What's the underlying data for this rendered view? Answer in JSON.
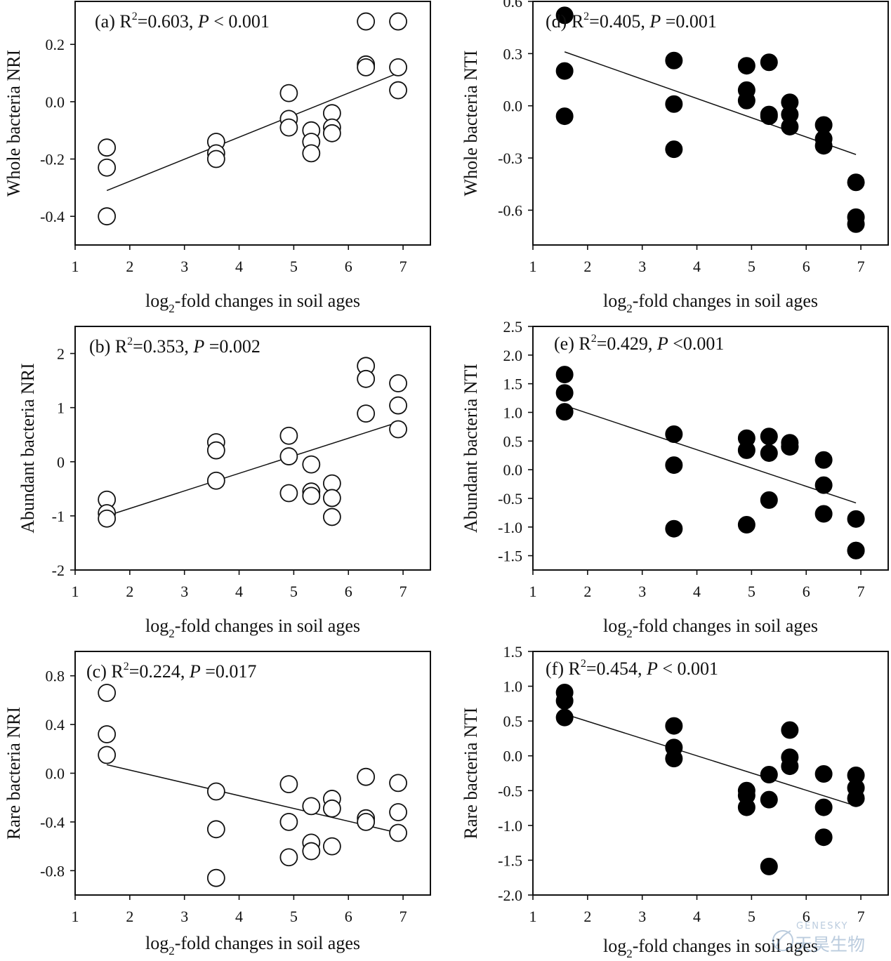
{
  "chart_data": [
    {
      "type": "scatter",
      "panel": "(a)",
      "stat_r2": "=0.603,",
      "stat_p": "< 0.001",
      "xlabel": "log₂-fold changes in soil ages",
      "ylabel": "Whole bacteria NRI",
      "xlim": [
        1,
        7.5
      ],
      "ylim": [
        -0.5,
        0.35
      ],
      "xticks": [
        1,
        2,
        3,
        4,
        5,
        6,
        7
      ],
      "yticks": [
        -0.4,
        -0.2,
        0.0,
        0.2
      ],
      "ytick_labels": [
        "-0.4",
        "-0.2",
        "0.0",
        "0.2"
      ],
      "marker": "open",
      "points": [
        [
          1.58,
          -0.16
        ],
        [
          1.58,
          -0.23
        ],
        [
          1.58,
          -0.4
        ],
        [
          3.58,
          -0.14
        ],
        [
          3.58,
          -0.18
        ],
        [
          3.58,
          -0.2
        ],
        [
          4.91,
          0.03
        ],
        [
          4.91,
          -0.06
        ],
        [
          4.91,
          -0.09
        ],
        [
          5.32,
          -0.1
        ],
        [
          5.32,
          -0.14
        ],
        [
          5.32,
          -0.18
        ],
        [
          5.7,
          -0.04
        ],
        [
          5.7,
          -0.09
        ],
        [
          5.7,
          -0.11
        ],
        [
          6.32,
          0.28
        ],
        [
          6.32,
          0.13
        ],
        [
          6.32,
          0.12
        ],
        [
          6.91,
          0.28
        ],
        [
          6.91,
          0.12
        ],
        [
          6.91,
          0.04
        ]
      ],
      "fit": [
        [
          1.58,
          -0.31
        ],
        [
          6.91,
          0.1
        ]
      ]
    },
    {
      "type": "scatter",
      "panel": "(b)",
      "stat_r2": "=0.353,",
      "stat_p": "=0.002",
      "xlabel": "log₂-fold changes in soil ages",
      "ylabel": "Abundant bacteria NRI",
      "xlim": [
        1,
        7.5
      ],
      "ylim": [
        -2,
        2.5
      ],
      "xticks": [
        1,
        2,
        3,
        4,
        5,
        6,
        7
      ],
      "yticks": [
        -2,
        -1,
        0,
        1,
        2
      ],
      "ytick_labels": [
        "-2",
        "-1",
        "0",
        "1",
        "2"
      ],
      "marker": "open",
      "points": [
        [
          1.58,
          -0.7
        ],
        [
          1.58,
          -0.95
        ],
        [
          1.58,
          -1.05
        ],
        [
          3.58,
          0.36
        ],
        [
          3.58,
          0.21
        ],
        [
          3.58,
          -0.35
        ],
        [
          4.91,
          0.48
        ],
        [
          4.91,
          0.1
        ],
        [
          4.91,
          -0.58
        ],
        [
          5.32,
          -0.05
        ],
        [
          5.32,
          -0.55
        ],
        [
          5.32,
          -0.63
        ],
        [
          5.7,
          -0.4
        ],
        [
          5.7,
          -0.67
        ],
        [
          5.7,
          -1.02
        ],
        [
          6.32,
          1.77
        ],
        [
          6.32,
          1.53
        ],
        [
          6.32,
          0.89
        ],
        [
          6.91,
          1.45
        ],
        [
          6.91,
          1.04
        ],
        [
          6.91,
          0.6
        ]
      ],
      "fit": [
        [
          1.58,
          -1.0
        ],
        [
          6.91,
          0.73
        ]
      ]
    },
    {
      "type": "scatter",
      "panel": "(c)",
      "stat_r2": "=0.224,",
      "stat_p": "=0.017",
      "xlabel": "log₂-fold changes in soil ages",
      "ylabel": "Rare bacteria NRI",
      "xlim": [
        1,
        7.5
      ],
      "ylim": [
        -1.0,
        1.0
      ],
      "xticks": [
        1,
        2,
        3,
        4,
        5,
        6,
        7
      ],
      "yticks": [
        -0.8,
        -0.4,
        0.0,
        0.4,
        0.8
      ],
      "ytick_labels": [
        "-0.8",
        "-0.4",
        "0.0",
        "0.4",
        "0.8"
      ],
      "marker": "open",
      "points": [
        [
          1.58,
          0.66
        ],
        [
          1.58,
          0.32
        ],
        [
          1.58,
          0.15
        ],
        [
          3.58,
          -0.15
        ],
        [
          3.58,
          -0.46
        ],
        [
          3.58,
          -0.86
        ],
        [
          4.91,
          -0.09
        ],
        [
          4.91,
          -0.4
        ],
        [
          4.91,
          -0.69
        ],
        [
          5.32,
          -0.27
        ],
        [
          5.32,
          -0.57
        ],
        [
          5.32,
          -0.64
        ],
        [
          5.7,
          -0.21
        ],
        [
          5.7,
          -0.29
        ],
        [
          5.7,
          -0.6
        ],
        [
          6.32,
          -0.03
        ],
        [
          6.32,
          -0.37
        ],
        [
          6.32,
          -0.4
        ],
        [
          6.91,
          -0.08
        ],
        [
          6.91,
          -0.32
        ],
        [
          6.91,
          -0.49
        ]
      ],
      "fit": [
        [
          1.58,
          0.07
        ],
        [
          6.91,
          -0.49
        ]
      ]
    },
    {
      "type": "scatter",
      "panel": "(d)",
      "stat_r2": "=0.405,",
      "stat_p": "=0.001",
      "xlabel": "log₂-fold changes in soil ages",
      "ylabel": "Whole bacteria NTI",
      "xlim": [
        1,
        7.5
      ],
      "ylim": [
        -0.8,
        0.6
      ],
      "xticks": [
        1,
        2,
        3,
        4,
        5,
        6,
        7
      ],
      "yticks": [
        -0.6,
        -0.3,
        0.0,
        0.3,
        0.6
      ],
      "ytick_labels": [
        "-0.6",
        "-0.3",
        "0.0",
        "0.3",
        "0.6"
      ],
      "marker": "filled",
      "points": [
        [
          1.58,
          0.52
        ],
        [
          1.58,
          0.2
        ],
        [
          1.58,
          -0.06
        ],
        [
          3.58,
          0.26
        ],
        [
          3.58,
          0.01
        ],
        [
          3.58,
          -0.25
        ],
        [
          4.91,
          0.23
        ],
        [
          4.91,
          0.09
        ],
        [
          4.91,
          0.03
        ],
        [
          5.32,
          0.25
        ],
        [
          5.32,
          -0.05
        ],
        [
          5.32,
          -0.06
        ],
        [
          5.7,
          0.02
        ],
        [
          5.7,
          -0.05
        ],
        [
          5.7,
          -0.12
        ],
        [
          6.32,
          -0.11
        ],
        [
          6.32,
          -0.19
        ],
        [
          6.32,
          -0.23
        ],
        [
          6.91,
          -0.44
        ],
        [
          6.91,
          -0.64
        ],
        [
          6.91,
          -0.68
        ]
      ],
      "fit": [
        [
          1.58,
          0.31
        ],
        [
          6.91,
          -0.28
        ]
      ]
    },
    {
      "type": "scatter",
      "panel": "(e)",
      "stat_r2": "=0.429,",
      "stat_p": "<0.001",
      "xlabel": "log₂-fold changes in soil ages",
      "ylabel": "Abundant bacteria NTI",
      "xlim": [
        1,
        7.5
      ],
      "ylim": [
        -1.75,
        2.5
      ],
      "xticks": [
        1,
        2,
        3,
        4,
        5,
        6,
        7
      ],
      "yticks": [
        -1.5,
        -1.0,
        -0.5,
        0.0,
        0.5,
        1.0,
        1.5,
        2.0,
        2.5
      ],
      "ytick_labels": [
        "-1.5",
        "-1.0",
        "-0.5",
        "0.0",
        "0.5",
        "1.0",
        "1.5",
        "2.0",
        "2.5"
      ],
      "marker": "filled",
      "points": [
        [
          1.58,
          1.66
        ],
        [
          1.58,
          1.34
        ],
        [
          1.58,
          1.01
        ],
        [
          3.58,
          0.62
        ],
        [
          3.58,
          0.08
        ],
        [
          3.58,
          -1.03
        ],
        [
          4.91,
          0.55
        ],
        [
          4.91,
          0.34
        ],
        [
          4.91,
          -0.96
        ],
        [
          5.32,
          0.58
        ],
        [
          5.32,
          0.29
        ],
        [
          5.32,
          -0.53
        ],
        [
          5.7,
          0.47
        ],
        [
          5.7,
          0.4
        ],
        [
          5.7,
          0.4
        ],
        [
          6.32,
          0.17
        ],
        [
          6.32,
          -0.27
        ],
        [
          6.32,
          -0.77
        ],
        [
          6.91,
          -0.86
        ],
        [
          6.91,
          -1.41
        ],
        [
          6.91,
          -1.41
        ]
      ],
      "fit": [
        [
          1.58,
          1.12
        ],
        [
          6.91,
          -0.58
        ]
      ]
    },
    {
      "type": "scatter",
      "panel": "(f)",
      "stat_r2": "=0.454,",
      "stat_p": "< 0.001",
      "xlabel": "log₂-fold changes in soil ages",
      "ylabel": "Rare bacteria NTI",
      "xlim": [
        1,
        7.5
      ],
      "ylim": [
        -2.0,
        1.5
      ],
      "xticks": [
        1,
        2,
        3,
        4,
        5,
        6,
        7
      ],
      "yticks": [
        -2.0,
        -1.5,
        -1.0,
        -0.5,
        0.0,
        0.5,
        1.0,
        1.5
      ],
      "ytick_labels": [
        "-2.0",
        "-1.5",
        "-1.0",
        "-0.5",
        "0.0",
        "0.5",
        "1.0",
        "1.5"
      ],
      "marker": "filled",
      "points": [
        [
          1.58,
          0.91
        ],
        [
          1.58,
          0.79
        ],
        [
          1.58,
          0.55
        ],
        [
          3.58,
          0.43
        ],
        [
          3.58,
          0.12
        ],
        [
          3.58,
          -0.04
        ],
        [
          4.91,
          -0.5
        ],
        [
          4.91,
          -0.57
        ],
        [
          4.91,
          -0.74
        ],
        [
          5.32,
          -0.27
        ],
        [
          5.32,
          -0.63
        ],
        [
          5.32,
          -1.59
        ],
        [
          5.7,
          0.37
        ],
        [
          5.7,
          -0.02
        ],
        [
          5.7,
          -0.15
        ],
        [
          6.32,
          -0.26
        ],
        [
          6.32,
          -0.74
        ],
        [
          6.32,
          -1.17
        ],
        [
          6.91,
          -0.28
        ],
        [
          6.91,
          -0.46
        ],
        [
          6.91,
          -0.61
        ]
      ],
      "fit": [
        [
          1.58,
          0.6
        ],
        [
          6.91,
          -0.72
        ]
      ]
    }
  ],
  "labels": {
    "r2_prefix": "R",
    "r2_exp": "2",
    "p_symbol": "P"
  },
  "watermark": {
    "text_en": "GENESKY",
    "text_cn": "天昊生物"
  }
}
